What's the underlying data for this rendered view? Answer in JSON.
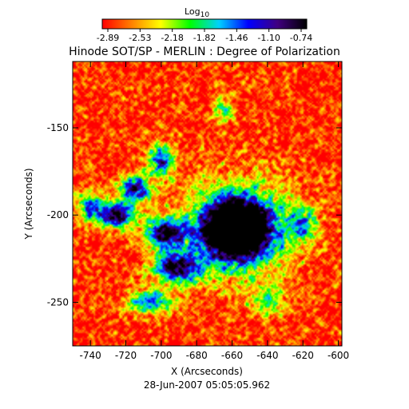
{
  "chart_data": {
    "type": "heatmap",
    "title": "Hinode SOT/SP - MERLIN : Degree of Polarization",
    "xlabel": "X (Arcseconds)",
    "ylabel": "Y (Arcseconds)",
    "timestamp": "28-Jun-2007 05:05:05.962",
    "colorbar": {
      "label": "Log",
      "label_subscript": "10",
      "ticks": [
        "-2.89",
        "-2.53",
        "-2.18",
        "-1.82",
        "-1.46",
        "-1.10",
        "-0.74"
      ],
      "range": [
        -2.89,
        -0.74
      ],
      "colors": [
        "#ff0000",
        "#ff8000",
        "#ffff00",
        "#00ff00",
        "#00d0ff",
        "#0000ff",
        "#400080",
        "#000000"
      ]
    },
    "xlim": [
      -750,
      -598
    ],
    "ylim": [
      -275,
      -112
    ],
    "x_ticks": [
      -740,
      -720,
      -700,
      -680,
      -660,
      -640,
      -620,
      -600
    ],
    "x_tick_labels": [
      "-740",
      "-720",
      "-700",
      "-680",
      "-660",
      "-640",
      "-620",
      "-600"
    ],
    "y_ticks": [
      -150,
      -200,
      -250
    ],
    "y_tick_labels": [
      "-150",
      "-200",
      "-250"
    ],
    "features": [
      {
        "x": -657,
        "y": -208,
        "sx": 16,
        "sy": 14,
        "amp": 1.9
      },
      {
        "x": -657,
        "y": -208,
        "sx": 32,
        "sy": 28,
        "amp": 0.55
      },
      {
        "x": -725,
        "y": -200,
        "sx": 10,
        "sy": 7,
        "amp": 0.95
      },
      {
        "x": -715,
        "y": -185,
        "sx": 9,
        "sy": 8,
        "amp": 0.8
      },
      {
        "x": -700,
        "y": -168,
        "sx": 7,
        "sy": 9,
        "amp": 0.7
      },
      {
        "x": -697,
        "y": -210,
        "sx": 11,
        "sy": 8,
        "amp": 0.9
      },
      {
        "x": -690,
        "y": -230,
        "sx": 14,
        "sy": 9,
        "amp": 0.85
      },
      {
        "x": -706,
        "y": -250,
        "sx": 14,
        "sy": 7,
        "amp": 0.55
      },
      {
        "x": -740,
        "y": -195,
        "sx": 7,
        "sy": 9,
        "amp": 0.6
      },
      {
        "x": -665,
        "y": -140,
        "sx": 6,
        "sy": 6,
        "amp": 0.5
      },
      {
        "x": -620,
        "y": -205,
        "sx": 8,
        "sy": 10,
        "amp": 0.45
      },
      {
        "x": -640,
        "y": -250,
        "sx": 10,
        "sy": 8,
        "amp": 0.4
      }
    ]
  }
}
